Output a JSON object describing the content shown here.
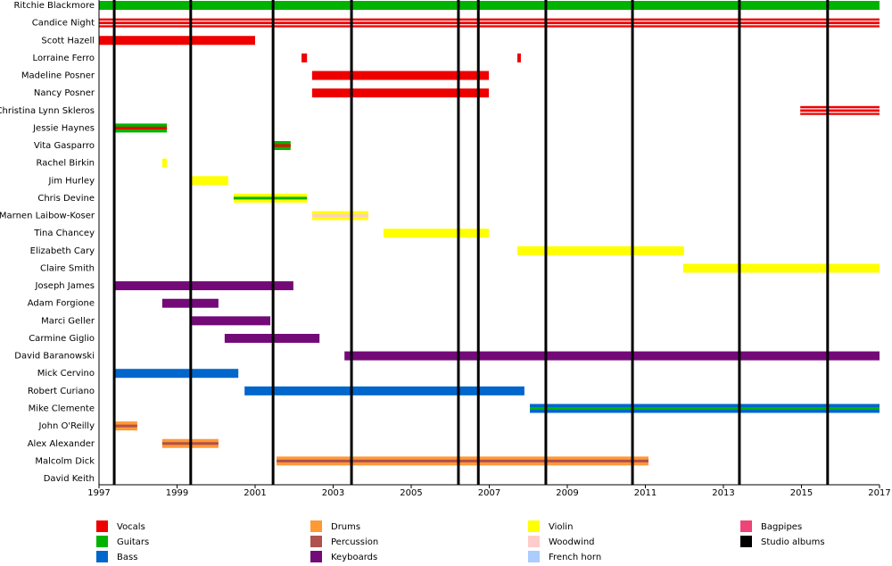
{
  "chart_data": {
    "type": "timeline",
    "xlim": [
      1997,
      2017
    ],
    "xticks": [
      1997,
      1999,
      2001,
      2003,
      2005,
      2007,
      2009,
      2011,
      2013,
      2015,
      2017
    ],
    "series": [
      {
        "name": "Vocals",
        "color": "#ee0000"
      },
      {
        "name": "Guitars",
        "color": "#00b300"
      },
      {
        "name": "Bass",
        "color": "#0066cc"
      },
      {
        "name": "Drums",
        "color": "#ff9933"
      },
      {
        "name": "Percussion",
        "color": "#b05050"
      },
      {
        "name": "Keyboards",
        "color": "#730a78"
      },
      {
        "name": "Violin",
        "color": "#ffff00"
      },
      {
        "name": "Woodwind",
        "color": "#ffcccc"
      },
      {
        "name": "French horn",
        "color": "#aaccff"
      },
      {
        "name": "Bagpipes",
        "color": "#ee4477"
      },
      {
        "name": "Studio albums",
        "color": "#000000"
      }
    ],
    "albums": [
      1997.39,
      1999.35,
      2001.46,
      2003.47,
      2006.21,
      2006.72,
      2008.45,
      2010.67,
      2013.41,
      2015.67
    ],
    "members": [
      {
        "name": "Ritchie Blackmore",
        "periods": [
          {
            "start": 1997,
            "end": 2017,
            "roles": [
              "Guitars"
            ]
          }
        ]
      },
      {
        "name": "Candice Night",
        "periods": [
          {
            "start": 1997,
            "end": 2017,
            "roles": [
              "Vocals",
              "Woodwind"
            ]
          }
        ]
      },
      {
        "name": "Scott Hazell",
        "periods": [
          {
            "start": 1997,
            "end": 2001.0,
            "roles": [
              "Vocals"
            ]
          }
        ]
      },
      {
        "name": "Lorraine Ferro",
        "periods": [
          {
            "start": 2002.19,
            "end": 2002.33,
            "roles": [
              "Vocals"
            ]
          },
          {
            "start": 2007.72,
            "end": 2007.81,
            "roles": [
              "Vocals"
            ]
          }
        ]
      },
      {
        "name": "Madeline Posner",
        "periods": [
          {
            "start": 2002.46,
            "end": 2006.99,
            "roles": [
              "Vocals"
            ]
          }
        ]
      },
      {
        "name": "Nancy Posner",
        "periods": [
          {
            "start": 2002.46,
            "end": 2006.99,
            "roles": [
              "Vocals"
            ]
          }
        ]
      },
      {
        "name": "Christina Lynn Skleros",
        "periods": [
          {
            "start": 2014.97,
            "end": 2017,
            "roles": [
              "Vocals",
              "Woodwind"
            ]
          }
        ]
      },
      {
        "name": "Jessie Haynes",
        "periods": [
          {
            "start": 1997.39,
            "end": 1998.74,
            "roles": [
              "Guitars",
              "Vocals"
            ]
          }
        ]
      },
      {
        "name": "Vita Gasparro",
        "periods": [
          {
            "start": 2001.46,
            "end": 2001.91,
            "roles": [
              "Guitars",
              "Vocals"
            ]
          }
        ]
      },
      {
        "name": "Rachel Birkin",
        "periods": [
          {
            "start": 1998.62,
            "end": 1998.74,
            "roles": [
              "Violin"
            ]
          }
        ]
      },
      {
        "name": "Jim Hurley",
        "periods": [
          {
            "start": 1999.38,
            "end": 2000.31,
            "roles": [
              "Violin"
            ]
          }
        ]
      },
      {
        "name": "Chris Devine",
        "periods": [
          {
            "start": 2000.45,
            "end": 2002.33,
            "roles": [
              "Violin",
              "Guitars"
            ]
          }
        ]
      },
      {
        "name": "Marnen Laibow-Koser",
        "periods": [
          {
            "start": 2002.46,
            "end": 2003.9,
            "roles": [
              "Violin",
              "Woodwind"
            ]
          }
        ]
      },
      {
        "name": "Tina Chancey",
        "periods": [
          {
            "start": 2004.29,
            "end": 2006.99,
            "roles": [
              "Violin"
            ]
          }
        ]
      },
      {
        "name": "Elizabeth Cary",
        "periods": [
          {
            "start": 2007.72,
            "end": 2011.99,
            "roles": [
              "Violin"
            ]
          }
        ]
      },
      {
        "name": "Claire Smith",
        "periods": [
          {
            "start": 2011.97,
            "end": 2017,
            "roles": [
              "Violin"
            ]
          }
        ]
      },
      {
        "name": "Joseph James",
        "periods": [
          {
            "start": 1997.39,
            "end": 2001.98,
            "roles": [
              "Keyboards"
            ]
          }
        ]
      },
      {
        "name": "Adam Forgione",
        "periods": [
          {
            "start": 1998.62,
            "end": 2000.06,
            "roles": [
              "Keyboards"
            ]
          }
        ]
      },
      {
        "name": "Marci Geller",
        "periods": [
          {
            "start": 1999.38,
            "end": 2001.39,
            "roles": [
              "Keyboards"
            ]
          }
        ]
      },
      {
        "name": "Carmine Giglio",
        "periods": [
          {
            "start": 2000.22,
            "end": 2002.65,
            "roles": [
              "Keyboards"
            ]
          }
        ]
      },
      {
        "name": "David Baranowski",
        "periods": [
          {
            "start": 2003.29,
            "end": 2017,
            "roles": [
              "Keyboards"
            ]
          }
        ]
      },
      {
        "name": "Mick Cervino",
        "periods": [
          {
            "start": 1997.39,
            "end": 2000.57,
            "roles": [
              "Bass"
            ]
          }
        ]
      },
      {
        "name": "Robert Curiano",
        "periods": [
          {
            "start": 2000.73,
            "end": 2007.9,
            "roles": [
              "Bass"
            ]
          }
        ]
      },
      {
        "name": "Mike Clemente",
        "periods": [
          {
            "start": 2008.04,
            "end": 2017,
            "roles": [
              "Bass",
              "Guitars"
            ]
          }
        ]
      },
      {
        "name": "John O'Reilly",
        "periods": [
          {
            "start": 1997.39,
            "end": 1997.98,
            "roles": [
              "Drums",
              "Percussion"
            ]
          }
        ]
      },
      {
        "name": "Alex Alexander",
        "periods": [
          {
            "start": 1998.62,
            "end": 2000.06,
            "roles": [
              "Drums",
              "Percussion"
            ]
          }
        ]
      },
      {
        "name": "Malcolm Dick",
        "periods": [
          {
            "start": 2001.55,
            "end": 2011.08,
            "roles": [
              "Drums",
              "Percussion"
            ]
          }
        ]
      },
      {
        "name": "David Keith",
        "periods": []
      }
    ]
  }
}
